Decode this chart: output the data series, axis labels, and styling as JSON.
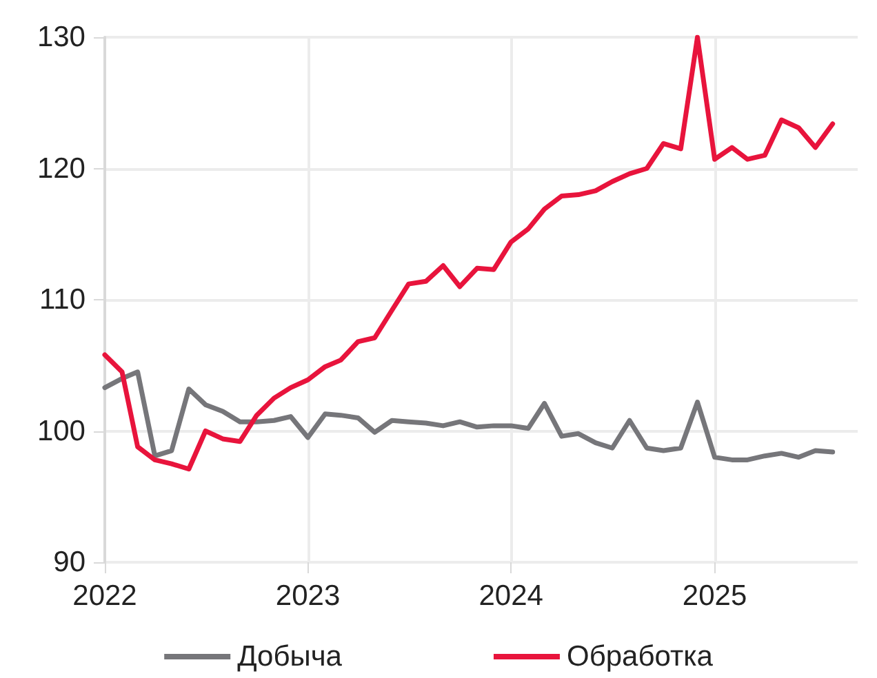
{
  "chart_data": {
    "type": "line",
    "x": [
      "2022-01",
      "2022-02",
      "2022-03",
      "2022-04",
      "2022-05",
      "2022-06",
      "2022-07",
      "2022-08",
      "2022-09",
      "2022-10",
      "2022-11",
      "2022-12",
      "2023-01",
      "2023-02",
      "2023-03",
      "2023-04",
      "2023-05",
      "2023-06",
      "2023-07",
      "2023-08",
      "2023-09",
      "2023-10",
      "2023-11",
      "2023-12",
      "2024-01",
      "2024-02",
      "2024-03",
      "2024-04",
      "2024-05",
      "2024-06",
      "2024-07",
      "2024-08",
      "2024-09",
      "2024-10",
      "2024-11",
      "2024-12",
      "2025-01",
      "2025-02",
      "2025-03",
      "2025-04",
      "2025-05",
      "2025-06",
      "2025-07",
      "2025-08"
    ],
    "series": [
      {
        "name": "Добыча",
        "color": "#76767a",
        "values": [
          103.3,
          104.0,
          104.5,
          98.1,
          98.5,
          103.2,
          102.0,
          101.5,
          100.7,
          100.7,
          100.8,
          101.1,
          99.5,
          101.3,
          101.2,
          101.0,
          99.9,
          100.8,
          100.7,
          100.6,
          100.4,
          100.7,
          100.3,
          100.4,
          100.4,
          100.2,
          102.1,
          99.6,
          99.8,
          99.1,
          98.7,
          100.8,
          98.7,
          98.5,
          98.7,
          102.2,
          98.0,
          97.8,
          97.8,
          98.1,
          98.3,
          98.0,
          98.5,
          98.4
        ]
      },
      {
        "name": "Обработка",
        "color": "#e8143c",
        "values": [
          105.8,
          104.5,
          98.8,
          97.8,
          97.5,
          97.1,
          100.0,
          99.4,
          99.2,
          101.2,
          102.5,
          103.3,
          103.9,
          104.9,
          105.4,
          106.8,
          107.1,
          109.2,
          111.2,
          111.4,
          112.6,
          111.0,
          112.4,
          112.3,
          114.4,
          115.4,
          116.9,
          117.9,
          118.0,
          118.3,
          119.0,
          119.6,
          120.0,
          121.9,
          121.5,
          130.0,
          120.7,
          121.6,
          120.7,
          121.0,
          123.7,
          123.1,
          121.6,
          123.4
        ]
      }
    ],
    "xlim": [
      "2022-01",
      "2025-09-15"
    ],
    "xticks": [
      "2022",
      "2023",
      "2024",
      "2025"
    ],
    "ylim": [
      90,
      130
    ],
    "yticks": [
      90,
      100,
      110,
      120,
      130
    ],
    "grid": true,
    "legend": "bottom",
    "marker": "none",
    "line_style": "solid"
  }
}
